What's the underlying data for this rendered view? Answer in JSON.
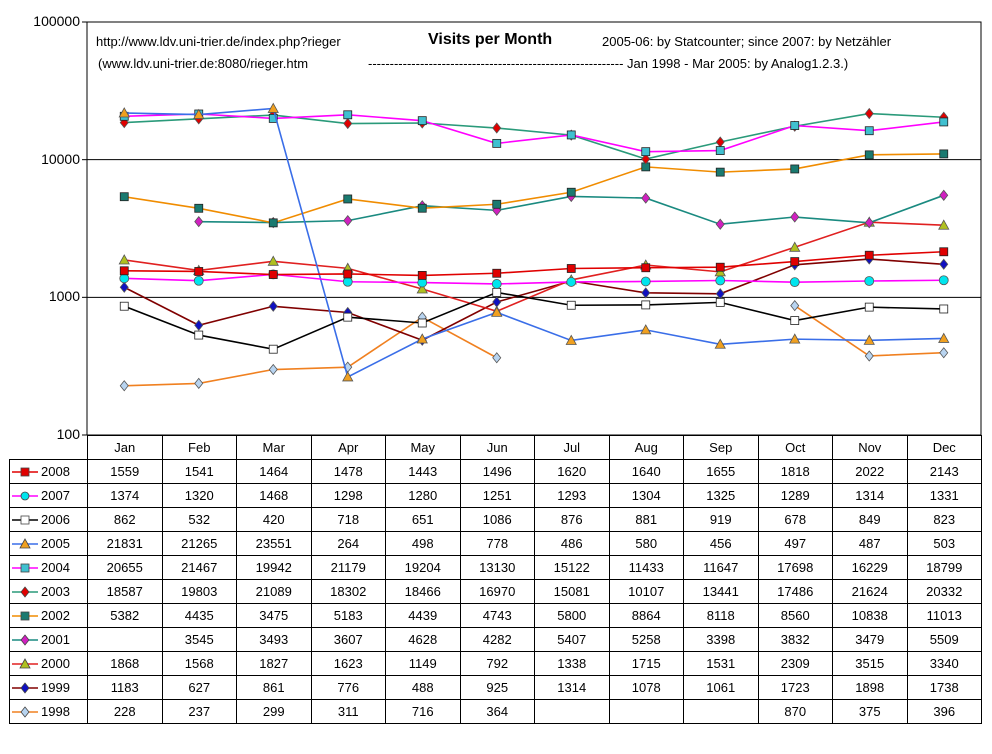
{
  "header": {
    "url1": "http://www.ldv.uni-trier.de/index.php?rieger",
    "title": "Visits per Month",
    "note1": "2005-06: by Statcounter;  since 2007: by Netzähler",
    "url2": "(www.ldv.uni-trier.de:8080/rieger.htm",
    "note2": "----------------------------------------------------------- Jan 1998 - Mar 2005: by Analog1.2.3.)"
  },
  "chart_data": {
    "type": "line",
    "title": "Visits per Month",
    "yscale": "log",
    "ylim": [
      100,
      100000
    ],
    "yticks": [
      "100",
      "1000",
      "10000",
      "100000"
    ],
    "grid": "major horizontal",
    "legend": "data table below chart",
    "categories": [
      "Jan",
      "Feb",
      "Mar",
      "Apr",
      "May",
      "Jun",
      "Jul",
      "Aug",
      "Sep",
      "Oct",
      "Nov",
      "Dec"
    ],
    "series": [
      {
        "name": "2008",
        "color": "#e00000",
        "marker": "square",
        "values": [
          1559,
          1541,
          1464,
          1478,
          1443,
          1496,
          1620,
          1640,
          1655,
          1818,
          2022,
          2143
        ]
      },
      {
        "name": "2007",
        "color": "#ff00ff",
        "marker": "circle",
        "fill": "#00e5ee",
        "values": [
          1374,
          1320,
          1468,
          1298,
          1280,
          1251,
          1293,
          1304,
          1325,
          1289,
          1314,
          1331
        ]
      },
      {
        "name": "2006",
        "color": "#000000",
        "marker": "square",
        "fill": "#ffffff",
        "values": [
          862,
          532,
          420,
          718,
          651,
          1086,
          876,
          881,
          919,
          678,
          849,
          823
        ]
      },
      {
        "name": "2005",
        "color": "#3a6ee8",
        "marker": "triangle",
        "fill": "#f0a020",
        "values": [
          21831,
          21265,
          23551,
          264,
          498,
          778,
          486,
          580,
          456,
          497,
          487,
          503
        ]
      },
      {
        "name": "2004",
        "color": "#ff00ff",
        "marker": "square",
        "fill": "#40c0d0",
        "values": [
          20655,
          21467,
          19942,
          21179,
          19204,
          13130,
          15122,
          11433,
          11647,
          17698,
          16229,
          18799
        ]
      },
      {
        "name": "2003",
        "color": "#2a9a7a",
        "marker": "diamond",
        "fill": "#e00000",
        "values": [
          18587,
          19803,
          21089,
          18302,
          18466,
          16970,
          15081,
          10107,
          13441,
          17486,
          21624,
          20332
        ]
      },
      {
        "name": "2002",
        "color": "#f08c00",
        "marker": "square",
        "fill": "#1a7a70",
        "values": [
          5382,
          4435,
          3475,
          5183,
          4439,
          4743,
          5800,
          8864,
          8118,
          8560,
          10838,
          11013
        ]
      },
      {
        "name": "2001",
        "color": "#1a8a80",
        "marker": "diamond",
        "fill": "#d020c0",
        "values": [
          null,
          3545,
          3493,
          3607,
          4628,
          4282,
          5407,
          5258,
          3398,
          3832,
          3479,
          5509
        ]
      },
      {
        "name": "2000",
        "color": "#e02020",
        "marker": "triangle",
        "fill": "#b0c020",
        "values": [
          1868,
          1568,
          1827,
          1623,
          1149,
          792,
          1338,
          1715,
          1531,
          2309,
          3515,
          3340
        ]
      },
      {
        "name": "1999",
        "color": "#800000",
        "marker": "diamond",
        "fill": "#1010c0",
        "values": [
          1183,
          627,
          861,
          776,
          488,
          925,
          1314,
          1078,
          1061,
          1723,
          1898,
          1738
        ]
      },
      {
        "name": "1998",
        "color": "#f08020",
        "marker": "diamond",
        "fill": "#b8d4f0",
        "values": [
          228,
          237,
          299,
          311,
          716,
          364,
          null,
          null,
          null,
          870,
          375,
          396
        ]
      }
    ]
  }
}
